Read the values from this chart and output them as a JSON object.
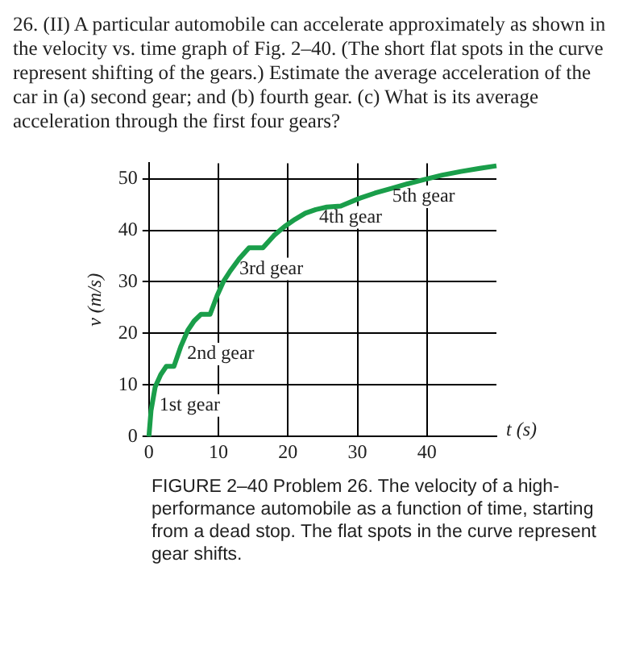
{
  "chart_data": {
    "type": "line",
    "title": "26. (II) A particular automobile can accelerate approximately as shown in the velocity vs. time graph of Fig. 2–40. (The short flat spots in the curve represent shifting of the gears.) Estimate the average acceleration of the car in (a) second gear; and (b) fourth gear. (c) What is its average acceleration through the first four gears?",
    "xlabel": "t (s)",
    "ylabel": "v (m/s)",
    "x": [
      0,
      0.3,
      0.9,
      1.7,
      2.5,
      3.6,
      4.6,
      5.6,
      6.5,
      7.5,
      8.8,
      9.8,
      10.7,
      11.7,
      13,
      14.4,
      16.4,
      18,
      19.5,
      21,
      22.5,
      24,
      25.6,
      27.6,
      30.3,
      32.5,
      34.9,
      37.2,
      39.5,
      42.2,
      44.9,
      47.6,
      50
    ],
    "series": [
      {
        "color": "#1a9e4a",
        "values": [
          0,
          5,
          9.6,
          12,
          13.6,
          13.6,
          17.5,
          20.6,
          22.4,
          23.7,
          23.7,
          27.3,
          30,
          32.1,
          34.5,
          36.6,
          36.6,
          39,
          40.7,
          42.1,
          43.3,
          44,
          44.5,
          44.7,
          46.2,
          47.2,
          48.1,
          49,
          49.8,
          50.7,
          51.4,
          52,
          52.5
        ]
      }
    ],
    "xlim": [
      0,
      50
    ],
    "ylim": [
      0,
      53
    ],
    "xticks": [
      0,
      10,
      20,
      30,
      40
    ],
    "yticks": [
      0,
      10,
      20,
      30,
      40,
      50
    ],
    "grid": true,
    "legend": false,
    "marker": "none",
    "line_style": "solid",
    "annotations": [
      {
        "text": "1st gear",
        "x": 1.5,
        "y": 6
      },
      {
        "text": "2nd gear",
        "x": 5.5,
        "y": 16
      },
      {
        "text": "3rd gear",
        "x": 13,
        "y": 32.5
      },
      {
        "text": "4th gear",
        "x": 24.5,
        "y": 42.5
      },
      {
        "text": "5th gear",
        "x": 35,
        "y": 46.5
      },
      "FIGURE 2–40 Problem 26. The velocity of a high-performance automobile as a function of time, starting from a dead stop. The flat spots in the curve represent gear shifts."
    ]
  }
}
